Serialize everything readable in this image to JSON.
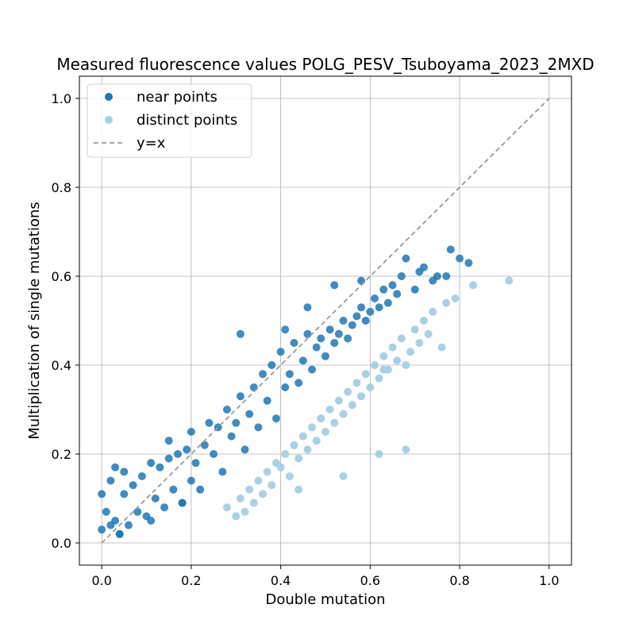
{
  "chart_data": {
    "type": "scatter",
    "title": "Measured fluorescence values POLG_PESV_Tsuboyama_2023_2MXD",
    "xlabel": "Double mutation",
    "ylabel": "Multiplication of single mutations",
    "xlim": [
      -0.05,
      1.05
    ],
    "ylim": [
      -0.05,
      1.05
    ],
    "xticks": [
      0.0,
      0.2,
      0.4,
      0.6,
      0.8,
      1.0
    ],
    "yticks": [
      0.0,
      0.2,
      0.4,
      0.6,
      0.8,
      1.0
    ],
    "xtick_labels": [
      "0.0",
      "0.2",
      "0.4",
      "0.6",
      "0.8",
      "1.0"
    ],
    "ytick_labels": [
      "0.0",
      "0.2",
      "0.4",
      "0.6",
      "0.8",
      "1.0"
    ],
    "grid": true,
    "legend_position": "top-left",
    "series": [
      {
        "name": "near points",
        "color": "#1f77b4",
        "x": [
          0.0,
          0.0,
          0.01,
          0.02,
          0.03,
          0.03,
          0.04,
          0.05,
          0.05,
          0.06,
          0.07,
          0.08,
          0.09,
          0.1,
          0.11,
          0.12,
          0.13,
          0.14,
          0.15,
          0.16,
          0.17,
          0.18,
          0.19,
          0.2,
          0.2,
          0.21,
          0.22,
          0.23,
          0.24,
          0.25,
          0.26,
          0.27,
          0.28,
          0.29,
          0.3,
          0.31,
          0.32,
          0.33,
          0.34,
          0.35,
          0.36,
          0.37,
          0.38,
          0.39,
          0.4,
          0.41,
          0.42,
          0.43,
          0.44,
          0.45,
          0.46,
          0.47,
          0.48,
          0.49,
          0.5,
          0.51,
          0.52,
          0.53,
          0.54,
          0.55,
          0.56,
          0.57,
          0.58,
          0.59,
          0.6,
          0.61,
          0.62,
          0.63,
          0.64,
          0.65,
          0.66,
          0.67,
          0.68,
          0.7,
          0.71,
          0.72,
          0.74,
          0.75,
          0.77,
          0.78,
          0.8,
          0.82,
          0.31,
          0.46,
          0.41,
          0.58,
          0.52,
          0.18,
          0.02,
          0.04,
          0.11,
          0.15
        ],
        "y": [
          0.11,
          0.03,
          0.07,
          0.14,
          0.17,
          0.05,
          0.02,
          0.16,
          0.11,
          0.04,
          0.13,
          0.07,
          0.15,
          0.06,
          0.18,
          0.1,
          0.17,
          0.08,
          0.19,
          0.12,
          0.2,
          0.09,
          0.21,
          0.14,
          0.25,
          0.18,
          0.12,
          0.22,
          0.27,
          0.2,
          0.26,
          0.16,
          0.3,
          0.24,
          0.27,
          0.33,
          0.21,
          0.29,
          0.35,
          0.26,
          0.38,
          0.32,
          0.4,
          0.28,
          0.43,
          0.35,
          0.38,
          0.45,
          0.36,
          0.41,
          0.47,
          0.39,
          0.44,
          0.46,
          0.42,
          0.48,
          0.45,
          0.47,
          0.5,
          0.46,
          0.49,
          0.51,
          0.53,
          0.5,
          0.52,
          0.55,
          0.53,
          0.57,
          0.54,
          0.58,
          0.56,
          0.6,
          0.64,
          0.57,
          0.61,
          0.62,
          0.59,
          0.6,
          0.6,
          0.66,
          0.64,
          0.63,
          0.47,
          0.53,
          0.48,
          0.59,
          0.58,
          0.09,
          0.04,
          0.02,
          0.05,
          0.23
        ]
      },
      {
        "name": "distinct points",
        "color": "#a6cee3",
        "x": [
          0.28,
          0.3,
          0.31,
          0.32,
          0.33,
          0.34,
          0.35,
          0.36,
          0.37,
          0.38,
          0.39,
          0.4,
          0.41,
          0.42,
          0.43,
          0.44,
          0.45,
          0.46,
          0.47,
          0.48,
          0.49,
          0.5,
          0.51,
          0.52,
          0.53,
          0.54,
          0.55,
          0.56,
          0.57,
          0.58,
          0.59,
          0.6,
          0.61,
          0.62,
          0.63,
          0.64,
          0.65,
          0.66,
          0.67,
          0.68,
          0.69,
          0.7,
          0.71,
          0.72,
          0.73,
          0.74,
          0.76,
          0.77,
          0.79,
          0.83,
          0.91,
          0.54,
          0.62,
          0.68,
          0.63,
          0.44
        ],
        "y": [
          0.08,
          0.06,
          0.1,
          0.07,
          0.12,
          0.09,
          0.14,
          0.11,
          0.16,
          0.13,
          0.18,
          0.17,
          0.2,
          0.15,
          0.22,
          0.19,
          0.24,
          0.21,
          0.26,
          0.23,
          0.28,
          0.25,
          0.3,
          0.27,
          0.32,
          0.29,
          0.34,
          0.31,
          0.36,
          0.33,
          0.38,
          0.35,
          0.4,
          0.37,
          0.42,
          0.39,
          0.44,
          0.41,
          0.46,
          0.4,
          0.43,
          0.48,
          0.45,
          0.5,
          0.47,
          0.52,
          0.44,
          0.54,
          0.55,
          0.58,
          0.59,
          0.15,
          0.2,
          0.21,
          0.39,
          0.12
        ]
      }
    ],
    "reference_line": {
      "name": "y=x",
      "color": "#999999",
      "x": [
        0.0,
        1.0
      ],
      "y": [
        0.0,
        1.0
      ]
    }
  }
}
